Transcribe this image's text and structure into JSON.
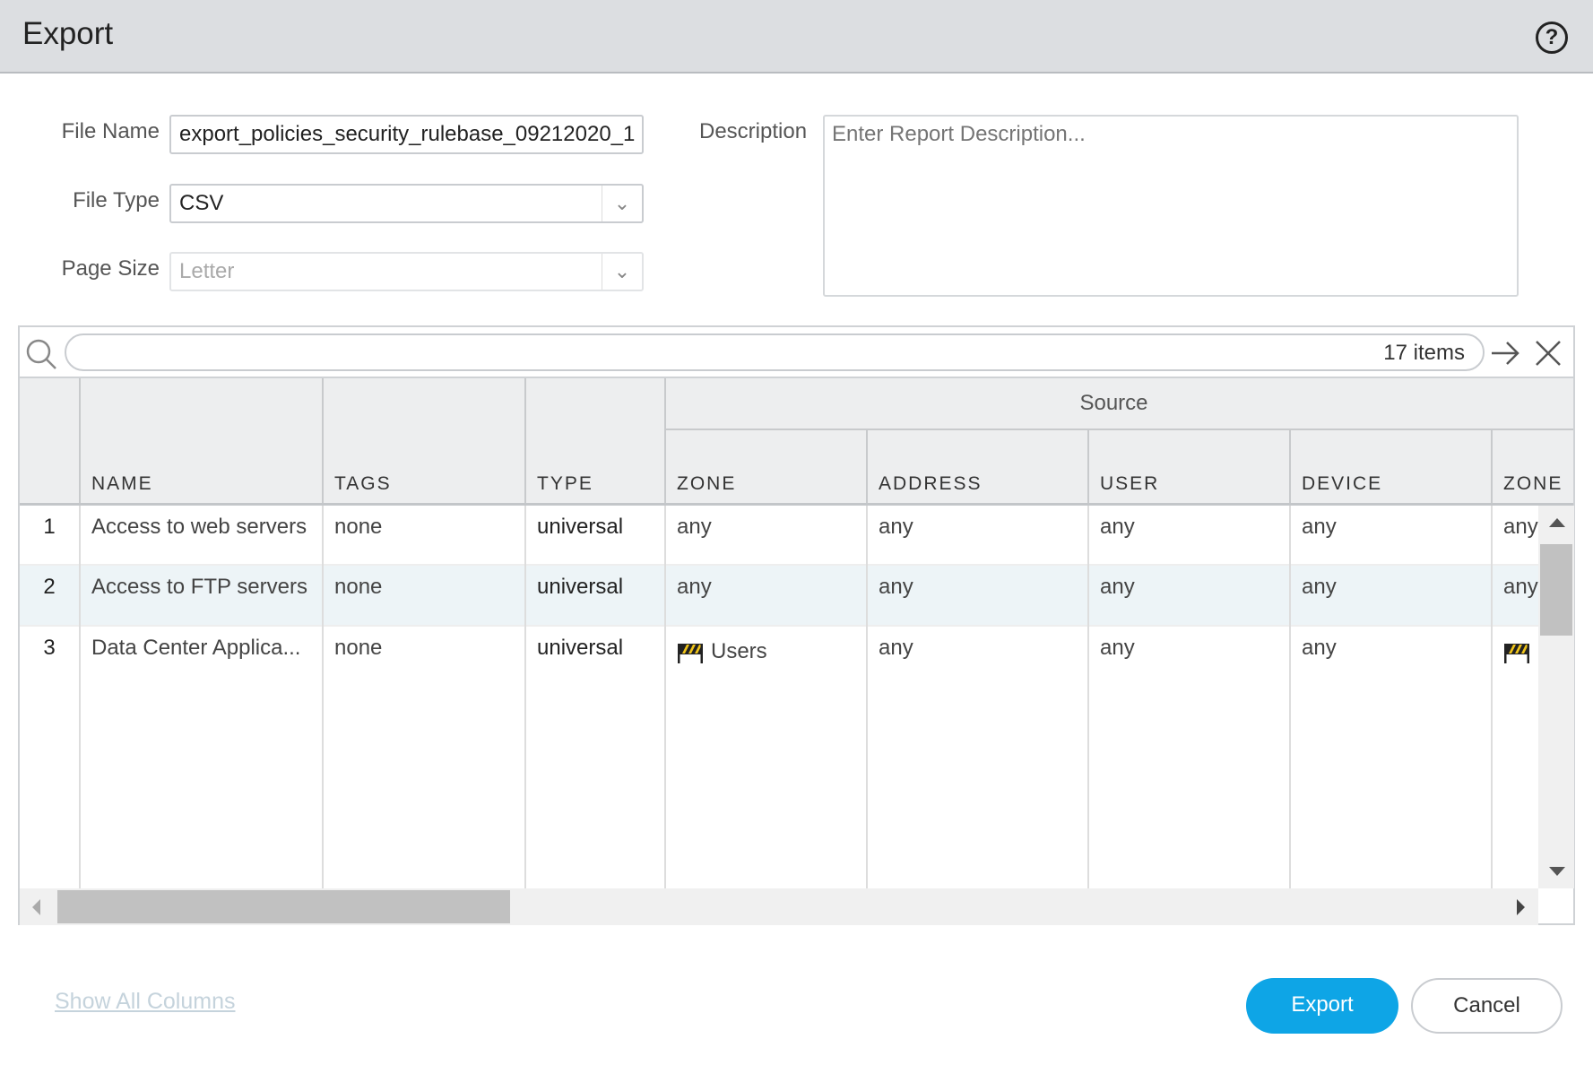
{
  "dialog": {
    "title": "Export",
    "help_icon": "help-circle-icon"
  },
  "form": {
    "file_name_label": "File Name",
    "file_name_value": "export_policies_security_rulebase_09212020_1",
    "file_type_label": "File Type",
    "file_type_value": "CSV",
    "page_size_label": "Page Size",
    "page_size_value": "Letter",
    "description_label": "Description",
    "description_placeholder": "Enter Report Description..."
  },
  "table": {
    "item_count": "17 items",
    "group_header": "Source",
    "columns": [
      "NAME",
      "TAGS",
      "TYPE",
      "ZONE",
      "ADDRESS",
      "USER",
      "DEVICE",
      "ZONE"
    ],
    "rows": [
      {
        "num": "1",
        "name": "Access to web servers",
        "tags": "none",
        "type": "universal",
        "zone": "any",
        "address": "any",
        "user": "any",
        "device": "any",
        "dzone": "any"
      },
      {
        "num": "2",
        "name": "Access to FTP servers",
        "tags": "none",
        "type": "universal",
        "zone": "any",
        "address": "any",
        "user": "any",
        "device": "any",
        "dzone": "any"
      },
      {
        "num": "3",
        "name": "Data Center Applica...",
        "tags": "none",
        "type": "universal",
        "zone": "Users",
        "address": "any",
        "user": "any",
        "device": "any",
        "dzone": ""
      }
    ]
  },
  "footer": {
    "show_all_columns": "Show All Columns",
    "export": "Export",
    "cancel": "Cancel"
  },
  "colors": {
    "accent": "#0ea5e6",
    "selected_row": "#edf4f7"
  }
}
